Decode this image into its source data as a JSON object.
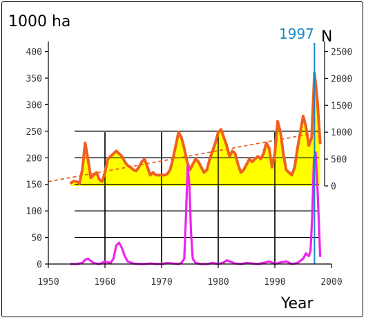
{
  "chart_data": {
    "type": "line",
    "left_axis_unit": "1000 ha",
    "right_axis_unit": "N",
    "xlabel": "Year",
    "highlight_year_label": "1997",
    "highlight_year": 1997,
    "xlim": [
      1950,
      2000
    ],
    "x_ticks": [
      1950,
      1960,
      1970,
      1980,
      1990,
      2000
    ],
    "left_ylim": [
      0,
      430
    ],
    "left_ticks": [
      0,
      50,
      100,
      150,
      200,
      250,
      300,
      350,
      400
    ],
    "right_ticks": [
      0,
      500,
      1000,
      1500,
      2000,
      2500
    ],
    "colors": {
      "area_fill": "#ffff00",
      "area_line": "#f06020",
      "trend": "#f06020",
      "count_line": "#ee22ee",
      "highlight": "#1a86c8",
      "grid": "#000000"
    },
    "series": [
      {
        "name": "",
        "axis": "right",
        "values_x": [
          1954,
          1954.5,
          1955,
          1955.5,
          1956,
          1956.5,
          1957,
          1957.5,
          1958,
          1958.5,
          1959,
          1959.5,
          1960,
          1960.5,
          1961,
          1961.5,
          1962,
          1962.5,
          1963,
          1963.5,
          1964,
          1964.5,
          1965,
          1965.5,
          1966,
          1966.5,
          1967,
          1967.5,
          1968,
          1968.5,
          1969,
          1969.5,
          1970,
          1970.5,
          1971,
          1971.5,
          1972,
          1972.5,
          1973,
          1973.5,
          1974,
          1974.5,
          1975,
          1975.5,
          1976,
          1976.5,
          1977,
          1977.5,
          1978,
          1978.5,
          1979,
          1979.5,
          1980,
          1980.5,
          1981,
          1981.5,
          1982,
          1982.5,
          1983,
          1983.5,
          1984,
          1984.5,
          1985,
          1985.5,
          1986,
          1986.5,
          1987,
          1987.5,
          1988,
          1988.5,
          1989,
          1989.5,
          1990,
          1990.5,
          1991,
          1991.5,
          1992,
          1992.5,
          1993,
          1993.5,
          1994,
          1994.5,
          1995,
          1995.5,
          1996,
          1996.5,
          1997,
          1997.5,
          1998
        ],
        "values": [
          55,
          90,
          80,
          50,
          300,
          800,
          500,
          150,
          200,
          250,
          120,
          80,
          250,
          500,
          550,
          600,
          650,
          600,
          550,
          450,
          380,
          350,
          300,
          280,
          350,
          450,
          500,
          350,
          200,
          250,
          200,
          200,
          200,
          200,
          220,
          300,
          500,
          750,
          1000,
          900,
          700,
          450,
          300,
          400,
          500,
          450,
          350,
          250,
          300,
          500,
          650,
          800,
          1000,
          1050,
          900,
          750,
          550,
          650,
          600,
          400,
          250,
          300,
          400,
          500,
          450,
          500,
          550,
          500,
          600,
          800,
          700,
          350,
          600,
          1200,
          1000,
          600,
          300,
          250,
          200,
          350,
          700,
          1000,
          1300,
          1100,
          750,
          900,
          2100,
          1600,
          800
        ]
      },
      {
        "name": "",
        "axis": "right",
        "type": "trend",
        "values_x": [
          1950,
          1998
        ],
        "values": [
          80,
          1000
        ]
      },
      {
        "name": "",
        "axis": "left",
        "values_x": [
          1954,
          1955,
          1956,
          1956.5,
          1957,
          1957.5,
          1958,
          1959,
          1959.5,
          1960,
          1960.5,
          1961,
          1961.5,
          1962,
          1962.5,
          1963,
          1963.5,
          1964,
          1965,
          1966,
          1967,
          1968,
          1969,
          1970,
          1971,
          1972,
          1973,
          1973.5,
          1974,
          1974.3,
          1974.6,
          1974.9,
          1975.2,
          1975.5,
          1976,
          1977,
          1978,
          1979,
          1980,
          1981,
          1981.5,
          1982,
          1983,
          1984,
          1985,
          1986,
          1987,
          1988,
          1989,
          1989.5,
          1990,
          1991,
          1992,
          1993,
          1994,
          1995,
          1995.5,
          1996,
          1996.3,
          1996.6,
          1996.9,
          1997.2,
          1997.5,
          1997.8,
          1998
        ],
        "values": [
          0,
          0,
          2,
          8,
          10,
          6,
          2,
          0,
          2,
          5,
          3,
          2,
          10,
          35,
          40,
          30,
          15,
          5,
          1,
          0,
          0,
          1,
          0,
          0,
          2,
          1,
          0,
          2,
          10,
          90,
          185,
          150,
          60,
          10,
          2,
          0,
          0,
          2,
          0,
          3,
          7,
          5,
          1,
          0,
          2,
          1,
          0,
          2,
          5,
          3,
          0,
          3,
          5,
          0,
          2,
          10,
          20,
          15,
          25,
          90,
          200,
          210,
          150,
          70,
          15
        ]
      }
    ]
  }
}
